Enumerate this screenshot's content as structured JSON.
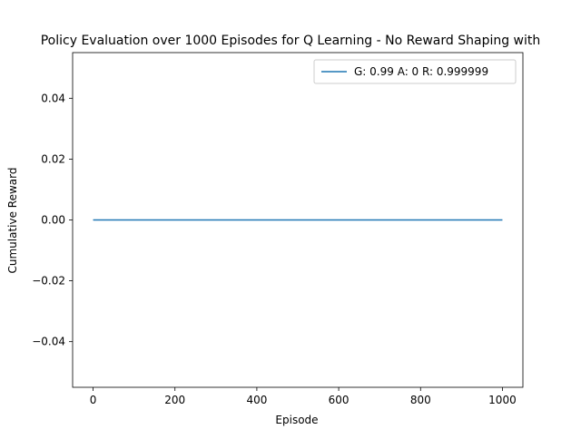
{
  "chart_data": {
    "type": "line",
    "title": "Policy Evaluation over 1000 Episodes for Q Learning - No Reward Shaping with",
    "xlabel": "Episode",
    "ylabel": "Cumulative Reward",
    "xlim": [
      -50,
      1050
    ],
    "ylim": [
      -0.055,
      0.055
    ],
    "xticks": [
      0,
      200,
      400,
      600,
      800,
      1000
    ],
    "xtick_labels": [
      "0",
      "200",
      "400",
      "600",
      "800",
      "1000"
    ],
    "yticks": [
      -0.04,
      -0.02,
      0.0,
      0.02,
      0.04
    ],
    "ytick_labels": [
      "−0.04",
      "−0.02",
      "0.00",
      "0.02",
      "0.04"
    ],
    "grid": false,
    "legend_position": "upper right",
    "series": [
      {
        "name": "G: 0.99 A: 0 R: 0.999999",
        "color": "#1f77b4",
        "x": [
          0,
          1000
        ],
        "y": [
          0,
          0
        ]
      }
    ]
  }
}
